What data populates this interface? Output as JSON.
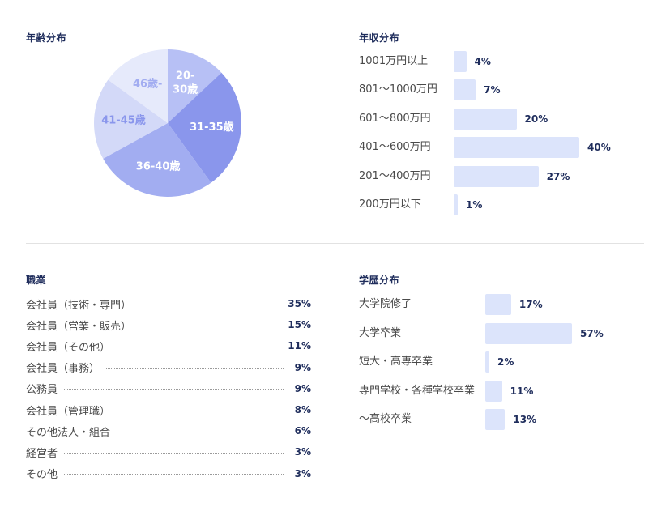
{
  "age": {
    "title": "年齢分布",
    "chart_data": {
      "type": "pie",
      "slices": [
        {
          "label": "20-\n30歳",
          "value": 13,
          "color": "#b7c0f5"
        },
        {
          "label": "31-35歳",
          "value": 27,
          "color": "#8a96ec"
        },
        {
          "label": "36-40歳",
          "value": 27,
          "color": "#a2adf1"
        },
        {
          "label": "41-45歳",
          "value": 18,
          "color": "#d3d9f8"
        },
        {
          "label": "46歳-",
          "value": 15,
          "color": "#e6eafb"
        }
      ]
    }
  },
  "income": {
    "title": "年収分布",
    "chart_data": {
      "type": "bar",
      "categories": [
        "1001万円以上",
        "801〜1000万円",
        "601〜800万円",
        "401〜600万円",
        "201〜400万円",
        "200万円以下"
      ],
      "values": [
        4,
        7,
        20,
        40,
        27,
        1
      ],
      "value_labels": [
        "4%",
        "7%",
        "20%",
        "40%",
        "27%",
        "1%"
      ]
    }
  },
  "occupation": {
    "title": "職業",
    "items": [
      {
        "label": "会社員（技術・専門）",
        "value": "35%"
      },
      {
        "label": "会社員（営業・販売）",
        "value": "15%"
      },
      {
        "label": "会社員（その他）",
        "value": "11%"
      },
      {
        "label": "会社員（事務）",
        "value": "9%"
      },
      {
        "label": "公務員",
        "value": "9%"
      },
      {
        "label": "会社員（管理職）",
        "value": "8%"
      },
      {
        "label": "その他法人・組合",
        "value": "6%"
      },
      {
        "label": "経営者",
        "value": "3%"
      },
      {
        "label": "その他",
        "value": "3%"
      }
    ]
  },
  "education": {
    "title": "学歴分布",
    "chart_data": {
      "type": "bar",
      "categories": [
        "大学院修了",
        "大学卒業",
        "短大・高専卒業",
        "専門学校・各種学校卒業",
        "〜高校卒業"
      ],
      "values": [
        17,
        57,
        2,
        11,
        13
      ],
      "value_labels": [
        "17%",
        "57%",
        "2%",
        "11%",
        "13%"
      ]
    }
  },
  "colors": {
    "title": "#1f2d5c",
    "bar": "#dce4fb"
  }
}
